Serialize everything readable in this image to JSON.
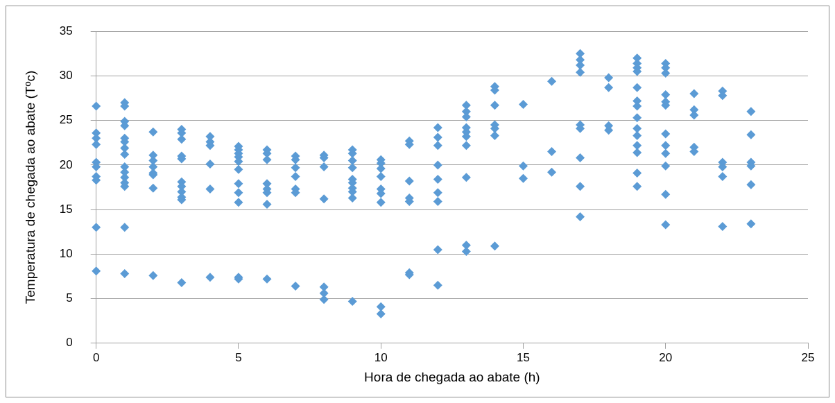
{
  "chart_data": {
    "type": "scatter",
    "xlabel": "Hora de chegada ao abate (h)",
    "ylabel": "Temperatura de chegada ao abate (Tºc)",
    "xlim": [
      0,
      25
    ],
    "xticks": [
      0,
      5,
      10,
      15,
      20,
      25
    ],
    "ylim": [
      0,
      35
    ],
    "yticks": [
      0,
      5,
      10,
      15,
      20,
      25,
      30,
      35
    ],
    "grid": "y",
    "legend": false,
    "marker": "diamond",
    "series": [
      {
        "color": "#5b9bd5",
        "x": [
          0,
          0,
          0,
          0,
          0,
          0,
          0,
          0,
          0,
          0,
          1,
          1,
          1,
          1,
          1,
          1,
          1,
          1,
          1,
          1,
          1,
          1,
          1,
          1,
          1,
          2,
          2,
          2,
          2,
          2,
          2,
          2,
          2,
          3,
          3,
          3,
          3,
          3,
          3,
          3,
          3,
          3,
          3,
          3,
          4,
          4,
          4,
          4,
          4,
          4,
          5,
          5,
          5,
          5,
          5,
          5,
          5,
          5,
          5,
          5,
          5,
          6,
          6,
          6,
          6,
          6,
          6,
          6,
          6,
          7,
          7,
          7,
          7,
          7,
          7,
          7,
          8,
          8,
          8,
          8,
          8,
          8,
          8,
          9,
          9,
          9,
          9,
          9,
          9,
          9,
          9,
          9,
          9,
          10,
          10,
          10,
          10,
          10,
          10,
          10,
          10,
          10,
          11,
          11,
          11,
          11,
          11,
          11,
          11,
          12,
          12,
          12,
          12,
          12,
          12,
          12,
          12,
          12,
          13,
          13,
          13,
          13,
          13,
          13,
          13,
          13,
          13,
          13,
          14,
          14,
          14,
          14,
          14,
          14,
          14,
          15,
          15,
          15,
          16,
          16,
          16,
          17,
          17,
          17,
          17,
          17,
          17,
          17,
          17,
          17,
          18,
          18,
          18,
          18,
          19,
          19,
          19,
          19,
          19,
          19,
          19,
          19,
          19,
          19,
          19,
          19,
          19,
          19,
          20,
          20,
          20,
          20,
          20,
          20,
          20,
          20,
          20,
          20,
          20,
          20,
          21,
          21,
          21,
          21,
          21,
          22,
          22,
          22,
          22,
          22,
          22,
          23,
          23,
          23,
          23,
          23,
          23
        ],
        "values": [
          26.6,
          23.6,
          23,
          22.3,
          20.3,
          19.8,
          18.7,
          18.3,
          13,
          8.1,
          27,
          26.6,
          24.9,
          24.4,
          23,
          22.6,
          21.9,
          21.2,
          19.8,
          19.2,
          18.6,
          18,
          17.6,
          13,
          7.8,
          23.7,
          21.1,
          20.5,
          19.8,
          19.1,
          18.9,
          17.4,
          7.6,
          24,
          23.6,
          22.9,
          21,
          20.7,
          18.1,
          17.6,
          17,
          16.4,
          16.1,
          6.8,
          23.2,
          22.6,
          22.2,
          20.1,
          17.3,
          7.4,
          22.1,
          21.7,
          21.3,
          20.9,
          20.4,
          19.5,
          17.9,
          16.9,
          15.8,
          7.4,
          7.2,
          21.7,
          21.3,
          20.6,
          17.9,
          17.3,
          16.9,
          15.6,
          7.2,
          21,
          20.6,
          19.7,
          18.7,
          17.3,
          16.9,
          6.4,
          21.1,
          20.8,
          19.8,
          16.2,
          6.3,
          5.6,
          4.9,
          21.7,
          21.3,
          20.5,
          19.7,
          18.4,
          18,
          17.4,
          17,
          16.3,
          4.7,
          20.6,
          20.2,
          19.6,
          18.7,
          17.3,
          16.8,
          15.8,
          4.1,
          3.3,
          22.7,
          22.3,
          18.2,
          16.3,
          15.9,
          7.9,
          7.7,
          24.2,
          23.1,
          22.2,
          20,
          18.4,
          16.9,
          15.9,
          10.5,
          6.5,
          26.7,
          26,
          25.4,
          24.2,
          23.7,
          23.2,
          22.2,
          18.6,
          11,
          10.3,
          28.8,
          28.4,
          26.7,
          24.5,
          24.1,
          23.3,
          10.9,
          26.8,
          19.9,
          18.5,
          29.4,
          21.5,
          19.2,
          32.5,
          31.8,
          31.2,
          30.4,
          24.5,
          24.1,
          20.8,
          17.6,
          14.2,
          29.8,
          28.7,
          24.4,
          23.9,
          32,
          31.4,
          30.9,
          30.5,
          28.7,
          27.2,
          26.6,
          25.3,
          24.1,
          23.3,
          22.2,
          21.4,
          19.1,
          17.6,
          31.4,
          30.9,
          30.3,
          27.9,
          27.1,
          26.7,
          23.5,
          22.2,
          21.3,
          19.9,
          16.7,
          13.3,
          28,
          26.2,
          25.6,
          22,
          21.5,
          28.3,
          27.8,
          20.3,
          19.8,
          18.7,
          13.1,
          26,
          23.4,
          20.3,
          19.9,
          17.8,
          13.4
        ]
      }
    ]
  }
}
